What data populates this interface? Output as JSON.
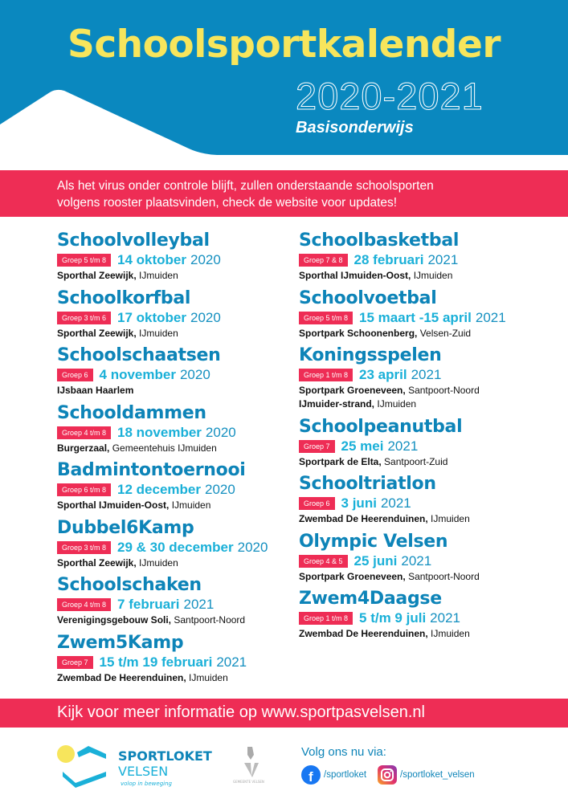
{
  "header": {
    "title": "Schoolsportkalender",
    "years": "2020-2021",
    "subtitle": "Basisonderwijs"
  },
  "notice": {
    "line1": "Als het virus onder controle blijft, zullen onderstaande schoolsporten",
    "line2": "volgens rooster plaatsvinden, check de website voor updates!"
  },
  "events_left": [
    {
      "title": "Schoolvolleybal",
      "group": "Groep 5 t/m 8",
      "date": "14 oktober",
      "year": "2020",
      "locations": [
        {
          "place": "Sporthal Zeewijk,",
          "city": "IJmuiden"
        }
      ]
    },
    {
      "title": "Schoolkorfbal",
      "group": "Groep 3 t/m 6",
      "date": "17 oktober",
      "year": "2020",
      "locations": [
        {
          "place": "Sporthal Zeewijk,",
          "city": "IJmuiden"
        }
      ]
    },
    {
      "title": "Schoolschaatsen",
      "group": "Groep 6",
      "date": "4 november",
      "year": "2020",
      "locations": [
        {
          "place": "IJsbaan Haarlem",
          "city": ""
        }
      ]
    },
    {
      "title": "Schooldammen",
      "group": "Groep 4 t/m 8",
      "date": "18 november",
      "year": "2020",
      "locations": [
        {
          "place": "Burgerzaal,",
          "city": "Gemeentehuis IJmuiden"
        }
      ]
    },
    {
      "title": "Badmintontoernooi",
      "group": "Groep 6 t/m 8",
      "date": "12 december",
      "year": "2020",
      "locations": [
        {
          "place": "Sporthal IJmuiden-Oost,",
          "city": "IJmuiden"
        }
      ]
    },
    {
      "title": "Dubbel6Kamp",
      "group": "Groep 3 t/m 8",
      "date": "29 & 30 december",
      "year": "2020",
      "locations": [
        {
          "place": "Sporthal Zeewijk,",
          "city": "IJmuiden"
        }
      ]
    },
    {
      "title": "Schoolschaken",
      "group": "Groep 4 t/m 8",
      "date": "7 februari",
      "year": "2021",
      "locations": [
        {
          "place": "Verenigingsgebouw Soli,",
          "city": "Santpoort-Noord"
        }
      ]
    },
    {
      "title": "Zwem5Kamp",
      "group": "Groep 7",
      "date": "15 t/m 19 februari",
      "year": "2021",
      "locations": [
        {
          "place": "Zwembad De Heerenduinen,",
          "city": "IJmuiden"
        }
      ]
    }
  ],
  "events_right": [
    {
      "title": "Schoolbasketbal",
      "group": "Groep 7 & 8",
      "date": "28 februari",
      "year": "2021",
      "locations": [
        {
          "place": "Sporthal IJmuiden-Oost,",
          "city": "IJmuiden"
        }
      ]
    },
    {
      "title": "Schoolvoetbal",
      "group": "Groep 5 t/m 8",
      "date": "15 maart -15 april",
      "year": "2021",
      "locations": [
        {
          "place": "Sportpark Schoonenberg,",
          "city": "Velsen-Zuid"
        }
      ]
    },
    {
      "title": "Koningsspelen",
      "group": "Groep 1 t/m 8",
      "date": "23 april",
      "year": "2021",
      "locations": [
        {
          "place": "Sportpark Groeneveen,",
          "city": "Santpoort-Noord"
        },
        {
          "place": "IJmuider-strand,",
          "city": "IJmuiden"
        }
      ]
    },
    {
      "title": "Schoolpeanutbal",
      "group": "Groep 7",
      "date": "25 mei",
      "year": "2021",
      "locations": [
        {
          "place": "Sportpark de Elta,",
          "city": "Santpoort-Zuid"
        }
      ]
    },
    {
      "title": "Schooltriatlon",
      "group": "Groep 6",
      "date": "3 juni",
      "year": "2021",
      "locations": [
        {
          "place": "Zwembad De Heerenduinen,",
          "city": "IJmuiden"
        }
      ]
    },
    {
      "title": "Olympic Velsen",
      "group": "Groep 4 & 5",
      "date": "25 juni",
      "year": "2021",
      "locations": [
        {
          "place": "Sportpark Groeneveen,",
          "city": "Santpoort-Noord"
        }
      ]
    },
    {
      "title": "Zwem4Daagse",
      "group": "Groep 1 t/m 8",
      "date": "5 t/m 9 juli",
      "year": "2021",
      "locations": [
        {
          "place": "Zwembad De Heerenduinen,",
          "city": "IJmuiden"
        }
      ]
    }
  ],
  "info": {
    "text": "Kijk voor meer informatie op www.sportpasvelsen.nl"
  },
  "footer": {
    "logo_line1": "SPORTLOKET",
    "logo_line2": "VELSEN",
    "logo_tagline": "volop in beweging",
    "municipality": "GEMEENTE VELSEN",
    "follow": "Volg ons nu via:",
    "facebook": "/sportloket",
    "instagram": "/sportloket_velsen"
  },
  "colors": {
    "blue": "#0a88bf",
    "cyan": "#1ab0d8",
    "yellow": "#f7e55c",
    "pink": "#ee2d55"
  }
}
